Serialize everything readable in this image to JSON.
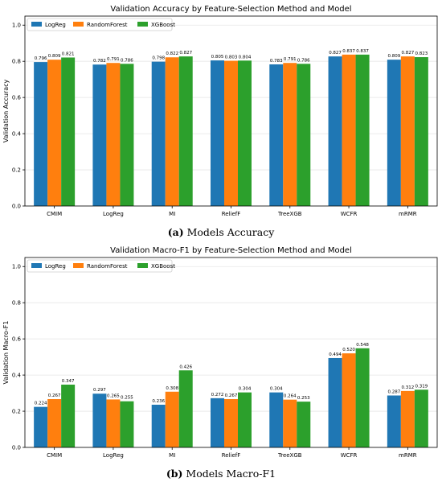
{
  "colors": [
    "#1f77b4",
    "#ff7f0e",
    "#2ca02c"
  ],
  "chart_data": [
    {
      "type": "bar",
      "title": "Validation Accuracy by Feature-Selection Method and Model",
      "xlabel": "",
      "ylabel": "Validation Accuracy",
      "ylim": [
        0,
        1.05
      ],
      "yticks": [
        "0.0",
        "0.2",
        "0.4",
        "0.6",
        "0.8",
        "1.0"
      ],
      "grid": "horizontal",
      "legend_position": "top-left",
      "categories": [
        "CMIM",
        "LogReg",
        "MI",
        "ReliefF",
        "TreeXGB",
        "WCFR",
        "mRMR"
      ],
      "series": [
        {
          "name": "LogReg",
          "values": [
            0.796,
            0.782,
            0.798,
            0.805,
            0.783,
            0.827,
            0.809
          ],
          "labels": [
            "0.796",
            "0.782",
            "0.798",
            "0.805",
            "0.783",
            "0.827",
            "0.809"
          ]
        },
        {
          "name": "RandomForest",
          "values": [
            0.809,
            0.791,
            0.822,
            0.803,
            0.791,
            0.837,
            0.827
          ],
          "labels": [
            "0.809",
            "0.791",
            "0.822",
            "0.803",
            "0.791",
            "0.837",
            "0.827"
          ]
        },
        {
          "name": "XGBoost",
          "values": [
            0.821,
            0.786,
            0.827,
            0.804,
            0.786,
            0.837,
            0.823
          ],
          "labels": [
            "0.821",
            "0.786",
            "0.827",
            "0.804",
            "0.786",
            "0.837",
            "0.823"
          ]
        }
      ],
      "caption_tag": "(a)",
      "caption_text": "Models Accuracy"
    },
    {
      "type": "bar",
      "title": "Validation Macro-F1 by Feature-Selection Method and Model",
      "xlabel": "",
      "ylabel": "Validation Macro-F1",
      "ylim": [
        0,
        1.05
      ],
      "yticks": [
        "0.0",
        "0.2",
        "0.4",
        "0.6",
        "0.8",
        "1.0"
      ],
      "grid": "horizontal",
      "legend_position": "top-left",
      "categories": [
        "CMIM",
        "LogReg",
        "MI",
        "ReliefF",
        "TreeXGB",
        "WCFR",
        "mRMR"
      ],
      "series": [
        {
          "name": "LogReg",
          "values": [
            0.224,
            0.297,
            0.236,
            0.272,
            0.304,
            0.494,
            0.287
          ],
          "labels": [
            "0.224",
            "0.297",
            "0.236",
            "0.272",
            "0.304",
            "0.494",
            "0.287"
          ]
        },
        {
          "name": "RandomForest",
          "values": [
            0.267,
            0.265,
            0.308,
            0.267,
            0.264,
            0.52,
            0.312
          ],
          "labels": [
            "0.267",
            "0.265",
            "0.308",
            "0.267",
            "0.264",
            "0.520",
            "0.312"
          ]
        },
        {
          "name": "XGBoost",
          "values": [
            0.347,
            0.255,
            0.426,
            0.304,
            0.253,
            0.548,
            0.319
          ],
          "labels": [
            "0.347",
            "0.255",
            "0.426",
            "0.304",
            "0.253",
            "0.548",
            "0.319"
          ]
        }
      ],
      "caption_tag": "(b)",
      "caption_text": "Models Macro-F1"
    }
  ]
}
